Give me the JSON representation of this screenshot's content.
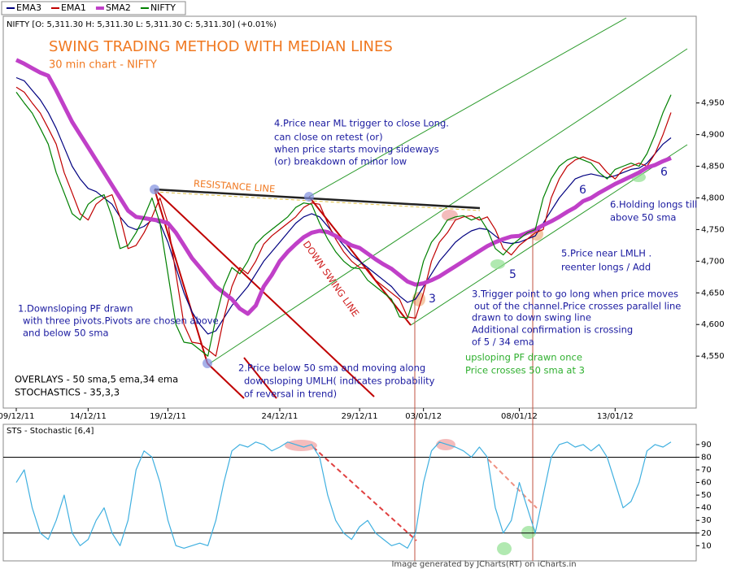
{
  "info": "NIFTY [O: 5,311.30  H: 5,311.30  L: 5,311.30  C: 5,311.30] (+0.01%)",
  "footer": "Image generated by JCharts(RT) on iCharts.in",
  "chart_data": [
    {
      "type": "line",
      "title": "SWING TRADING METHOD WITH MEDIAN LINES",
      "subtitle": "30 min chart - NIFTY",
      "categories": [
        "09/12/11",
        null,
        null,
        null,
        null,
        null,
        null,
        null,
        null,
        "14/12/11",
        null,
        null,
        null,
        null,
        null,
        null,
        null,
        null,
        null,
        "19/12/11",
        null,
        null,
        null,
        null,
        null,
        null,
        null,
        null,
        null,
        null,
        null,
        null,
        null,
        "24/12/11",
        null,
        null,
        null,
        null,
        null,
        null,
        null,
        null,
        null,
        "29/12/11",
        null,
        null,
        null,
        null,
        null,
        null,
        null,
        "03/01/12",
        null,
        null,
        null,
        null,
        null,
        null,
        null,
        null,
        null,
        null,
        null,
        "08/01/12",
        null,
        null,
        null,
        null,
        null,
        null,
        null,
        null,
        null,
        null,
        null,
        "13/01/12",
        null,
        null,
        null,
        null,
        null,
        null,
        null
      ],
      "series": [
        {
          "name": "EMA3",
          "color": "#000080",
          "values": [
            4990,
            4985,
            4970,
            4955,
            4935,
            4910,
            4880,
            4850,
            4830,
            4815,
            4810,
            4800,
            4790,
            4770,
            4755,
            4750,
            4755,
            4765,
            4760,
            4730,
            4690,
            4650,
            4620,
            4600,
            4585,
            4590,
            4610,
            4630,
            4645,
            4660,
            4680,
            4700,
            4715,
            4730,
            4745,
            4760,
            4770,
            4775,
            4770,
            4755,
            4740,
            4725,
            4710,
            4700,
            4690,
            4680,
            4670,
            4660,
            4645,
            4635,
            4640,
            4660,
            4680,
            4700,
            4715,
            4730,
            4740,
            4748,
            4752,
            4750,
            4740,
            4730,
            4728,
            4730,
            4735,
            4740,
            4760,
            4780,
            4800,
            4815,
            4830,
            4835,
            4838,
            4835,
            4832,
            4835,
            4840,
            4845,
            4847,
            4855,
            4870,
            4885,
            4895
          ]
        },
        {
          "name": "EMA1",
          "color": "#c00000",
          "values": [
            4975,
            4967,
            4950,
            4934,
            4910,
            4885,
            4840,
            4808,
            4775,
            4765,
            4790,
            4800,
            4805,
            4770,
            4720,
            4725,
            4745,
            4770,
            4800,
            4760,
            4680,
            4600,
            4572,
            4570,
            4560,
            4550,
            4610,
            4660,
            4690,
            4680,
            4700,
            4727,
            4740,
            4750,
            4760,
            4770,
            4785,
            4792,
            4790,
            4760,
            4735,
            4715,
            4700,
            4690,
            4688,
            4670,
            4660,
            4650,
            4640,
            4612,
            4610,
            4650,
            4700,
            4730,
            4745,
            4765,
            4770,
            4772,
            4765,
            4770,
            4750,
            4720,
            4710,
            4725,
            4735,
            4745,
            4750,
            4800,
            4830,
            4850,
            4860,
            4865,
            4860,
            4855,
            4840,
            4830,
            4845,
            4850,
            4855,
            4850,
            4870,
            4900,
            4935
          ]
        },
        {
          "name": "SMA2",
          "color": "#c040c8",
          "values": [
            5018,
            5012,
            5005,
            4998,
            4993,
            4970,
            4945,
            4920,
            4900,
            4880,
            4860,
            4840,
            4820,
            4800,
            4780,
            4770,
            4768,
            4766,
            4764,
            4760,
            4745,
            4725,
            4705,
            4690,
            4675,
            4660,
            4650,
            4640,
            4625,
            4617,
            4630,
            4660,
            4678,
            4700,
            4715,
            4727,
            4738,
            4745,
            4748,
            4746,
            4740,
            4732,
            4725,
            4721,
            4712,
            4703,
            4695,
            4688,
            4678,
            4668,
            4663,
            4665,
            4670,
            4676,
            4684,
            4692,
            4700,
            4708,
            4716,
            4724,
            4730,
            4735,
            4739,
            4740,
            4745,
            4750,
            4757,
            4763,
            4770,
            4778,
            4785,
            4795,
            4800,
            4808,
            4815,
            4822,
            4828,
            4834,
            4840,
            4848,
            4852,
            4858,
            4863
          ]
        },
        {
          "name": "NIFTY",
          "color": "#008000",
          "values": [
            4967,
            4950,
            4934,
            4910,
            4885,
            4840,
            4808,
            4775,
            4765,
            4790,
            4800,
            4805,
            4770,
            4720,
            4725,
            4745,
            4770,
            4800,
            4760,
            4680,
            4600,
            4572,
            4570,
            4560,
            4550,
            4610,
            4660,
            4690,
            4680,
            4700,
            4727,
            4740,
            4750,
            4760,
            4770,
            4785,
            4792,
            4790,
            4760,
            4735,
            4715,
            4700,
            4690,
            4688,
            4670,
            4660,
            4650,
            4640,
            4612,
            4610,
            4650,
            4700,
            4730,
            4745,
            4765,
            4770,
            4772,
            4765,
            4770,
            4750,
            4720,
            4710,
            4725,
            4735,
            4745,
            4750,
            4800,
            4830,
            4850,
            4860,
            4865,
            4860,
            4855,
            4840,
            4830,
            4845,
            4850,
            4855,
            4850,
            4870,
            4900,
            4935,
            4963
          ]
        }
      ],
      "ylim": [
        4468,
        5087
      ],
      "yticks": [
        {
          "value": 4550,
          "label": "4,550"
        },
        {
          "value": 4600,
          "label": "4,600"
        },
        {
          "value": 4650,
          "label": "4,650"
        },
        {
          "value": 4700,
          "label": "4,700"
        },
        {
          "value": 4750,
          "label": "4,750"
        },
        {
          "value": 4800,
          "label": "4,800"
        },
        {
          "value": 4850,
          "label": "4,850"
        },
        {
          "value": 4900,
          "label": "4,900"
        },
        {
          "value": 4950,
          "label": "4,950"
        }
      ],
      "annotations": [
        "RESISTANCE LINE",
        "4.Price near ML trigger to close Long.",
        "can close on retest (or)",
        " when price starts moving sideways",
        "(or) breakdown of minor low",
        "DOWN SWING LINE",
        "1.Downsloping PF drawn",
        "with three pivots.Pivots are chosen above",
        "and below 50 sma",
        "2.Price below 50 sma and moving along",
        "downsloping UMLH( indicates probability",
        "of reversal in trend)",
        "OVERLAYS - 50 sma,5 ema,34 ema",
        "STOCHASTICS - 35,3,3",
        "3.Trigger point to go long when price moves",
        "out of the channel.Price crosses parallel line",
        "drawn to down swing line",
        "Additional confirmation is crossing",
        "of 5 / 34 ema",
        "upsloping PF drawn once",
        "Price crosses 50 sma at 3",
        "5.Price near LMLH .",
        "reenter longs / Add",
        "6.Holding longs till",
        "above 50 sma",
        "3",
        "5",
        "6",
        "6"
      ]
    },
    {
      "type": "line",
      "title": "STS - Stochastic [6,4]",
      "color": "#40b0e0",
      "values": [
        60,
        70,
        40,
        20,
        15,
        30,
        50,
        20,
        10,
        15,
        30,
        40,
        20,
        10,
        30,
        70,
        85,
        80,
        60,
        30,
        10,
        8,
        10,
        12,
        10,
        30,
        60,
        85,
        90,
        88,
        92,
        90,
        85,
        88,
        92,
        90,
        88,
        90,
        80,
        50,
        30,
        20,
        15,
        25,
        30,
        20,
        15,
        10,
        12,
        8,
        20,
        60,
        85,
        92,
        90,
        88,
        85,
        80,
        88,
        80,
        40,
        20,
        30,
        60,
        40,
        20,
        50,
        80,
        90,
        92,
        88,
        90,
        85,
        90,
        80,
        60,
        40,
        45,
        60,
        85,
        90,
        88,
        92
      ],
      "ylim": [
        -2,
        106
      ],
      "yticks": [
        10,
        20,
        30,
        40,
        50,
        60,
        70,
        80,
        90
      ],
      "hlines": [
        80,
        20
      ]
    }
  ]
}
